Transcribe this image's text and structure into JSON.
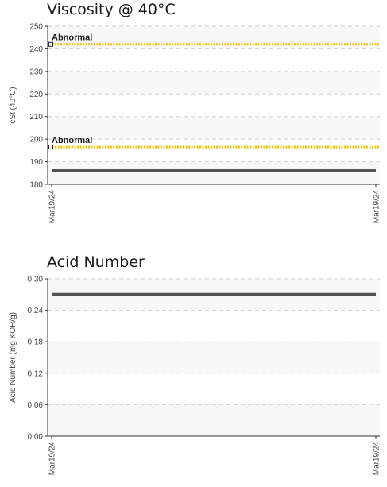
{
  "chart_data": [
    {
      "type": "line",
      "title": "Viscosity @ 40°C",
      "xlabel": "",
      "ylabel": "cSt (40°C)",
      "ylim": [
        180,
        250
      ],
      "yticks": [
        "180",
        "190",
        "200",
        "210",
        "220",
        "230",
        "240",
        "250"
      ],
      "x": [
        "Mar19/24",
        "Mar19/24"
      ],
      "grid": true,
      "series": [
        {
          "values": [
            186,
            186
          ],
          "color": "#555555"
        }
      ],
      "limits": [
        {
          "label": "Abnormal",
          "value": 242,
          "color": "#f2c400"
        },
        {
          "label": "Abnormal",
          "value": 196.5,
          "color": "#f2c400"
        }
      ]
    },
    {
      "type": "line",
      "title": "Acid Number",
      "xlabel": "",
      "ylabel": "Acid Number (mg KOH/g)",
      "ylim": [
        0,
        0.3
      ],
      "yticks": [
        "0.00",
        "0.06",
        "0.12",
        "0.18",
        "0.24",
        "0.30"
      ],
      "x": [
        "Mar19/24",
        "Mar19/24"
      ],
      "grid": true,
      "series": [
        {
          "values": [
            0.27,
            0.27
          ],
          "color": "#555555"
        }
      ],
      "limits": []
    }
  ]
}
